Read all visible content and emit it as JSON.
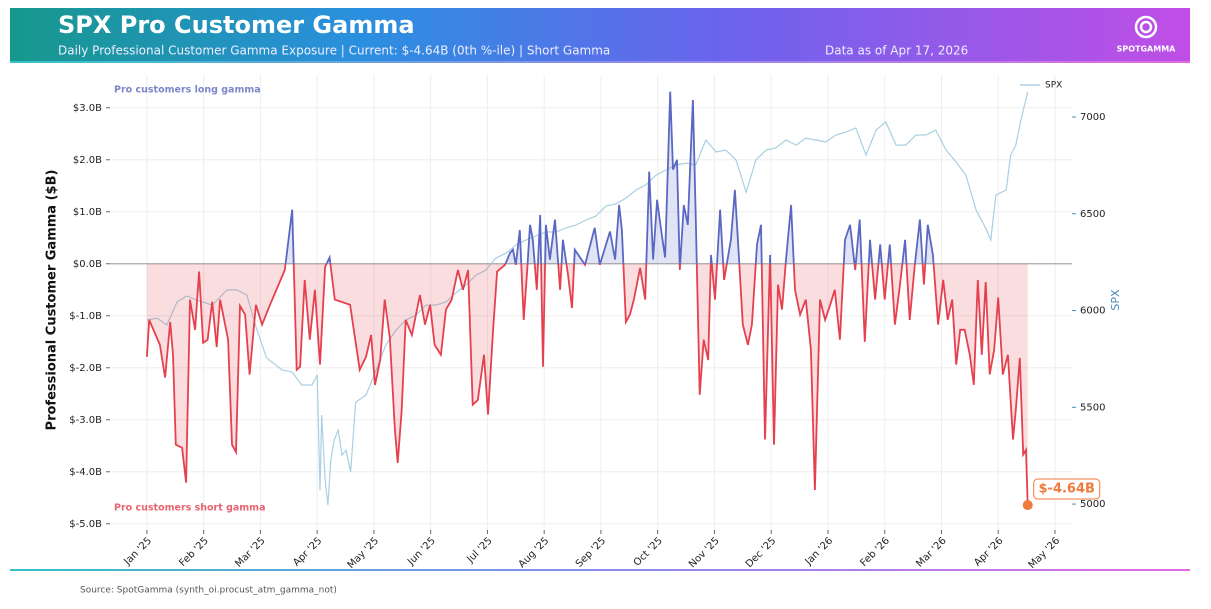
{
  "chart_data": {
    "type": "line",
    "title": "SPX Pro Customer Gamma",
    "subtitle": "Daily Professional Customer Gamma Exposure | Current: $-4.64B (0th %-ile) | Short Gamma",
    "date_note": "Data as of Apr 17, 2026",
    "brand": "SPOTGAMMA",
    "source": "Source: SpotGamma (synth_oi.procust_atm_gamma_not)",
    "ylabel": "Professional Customer Gamma ($B)",
    "y2label": "SPX",
    "grid": true,
    "legend": "upper right",
    "xlim": [
      -0.65,
      16.3
    ],
    "xticks": [
      {
        "value": 0,
        "label": "Jan '25"
      },
      {
        "value": 1,
        "label": "Feb '25"
      },
      {
        "value": 2,
        "label": "Mar '25"
      },
      {
        "value": 3,
        "label": "Apr '25"
      },
      {
        "value": 4,
        "label": "May '25"
      },
      {
        "value": 5,
        "label": "Jun '25"
      },
      {
        "value": 6,
        "label": "Jul '25"
      },
      {
        "value": 7,
        "label": "Aug '25"
      },
      {
        "value": 8,
        "label": "Sep '25"
      },
      {
        "value": 9,
        "label": "Oct '25"
      },
      {
        "value": 10,
        "label": "Nov '25"
      },
      {
        "value": 11,
        "label": "Dec '25"
      },
      {
        "value": 12,
        "label": "Jan '26"
      },
      {
        "value": 13,
        "label": "Feb '26"
      },
      {
        "value": 14,
        "label": "Mar '26"
      },
      {
        "value": 15,
        "label": "Apr '26"
      },
      {
        "value": 16,
        "label": "May '26"
      }
    ],
    "ylim": [
      -5.12,
      3.63
    ],
    "yticks": [
      {
        "value": -5,
        "label": "$-5.0B"
      },
      {
        "value": -4,
        "label": "$-4.0B"
      },
      {
        "value": -3,
        "label": "$-3.0B"
      },
      {
        "value": -2,
        "label": "$-2.0B"
      },
      {
        "value": -1,
        "label": "$-1.0B"
      },
      {
        "value": 0,
        "label": "$0.0B"
      },
      {
        "value": 1,
        "label": "$1.0B"
      },
      {
        "value": 2,
        "label": "$2.0B"
      },
      {
        "value": 3,
        "label": "$3.0B"
      }
    ],
    "y2lim": [
      4866,
      7217
    ],
    "y2ticks": [
      5000,
      5500,
      6000,
      6500,
      7000
    ],
    "annotations": [
      {
        "text": "Pro customers long gamma",
        "color": "#7b87c9"
      },
      {
        "text": "Pro customers short gamma",
        "color": "#e8636f"
      }
    ],
    "end_label": "$-4.64B",
    "end_color": "#ef7a3a",
    "series": [
      {
        "color": "#e5404e",
        "positive_color": "#5b68c2",
        "fill": true,
        "x": [
          0.0,
          0.04,
          0.23,
          0.32,
          0.41,
          0.46,
          0.51,
          0.62,
          0.69,
          0.76,
          0.85,
          0.92,
          0.99,
          1.07,
          1.15,
          1.23,
          1.29,
          1.43,
          1.5,
          1.57,
          1.64,
          1.73,
          1.81,
          1.92,
          2.03,
          2.17,
          2.43,
          2.56,
          2.64,
          2.7,
          2.78,
          2.87,
          2.96,
          3.05,
          3.14,
          3.22,
          3.31,
          3.58,
          3.75,
          3.86,
          3.95,
          4.02,
          4.11,
          4.19,
          4.28,
          4.37,
          4.42,
          4.49,
          4.56,
          4.67,
          4.81,
          4.9,
          4.99,
          5.07,
          5.18,
          5.27,
          5.37,
          5.48,
          5.57,
          5.66,
          5.74,
          5.83,
          5.94,
          6.01,
          6.1,
          6.17,
          6.31,
          6.4,
          6.45,
          6.5,
          6.57,
          6.64,
          6.7,
          6.75,
          6.8,
          6.87,
          6.93,
          6.98,
          7.03,
          7.1,
          7.19,
          7.28,
          7.33,
          7.42,
          7.49,
          7.54,
          7.72,
          7.89,
          7.98,
          8.16,
          8.25,
          8.32,
          8.37,
          8.44,
          8.51,
          8.58,
          8.69,
          8.78,
          8.85,
          8.92,
          8.99,
          9.06,
          9.13,
          9.22,
          9.27,
          9.34,
          9.39,
          9.46,
          9.53,
          9.62,
          9.67,
          9.74,
          9.81,
          9.89,
          9.94,
          10.01,
          10.1,
          10.17,
          10.29,
          10.36,
          10.43,
          10.5,
          10.59,
          10.66,
          10.75,
          10.82,
          10.89,
          10.98,
          11.05,
          11.12,
          11.19,
          11.26,
          11.35,
          11.42,
          11.51,
          11.61,
          11.7,
          11.77,
          11.86,
          11.95,
          12.04,
          12.12,
          12.21,
          12.3,
          12.39,
          12.48,
          12.56,
          12.65,
          12.74,
          12.83,
          12.92,
          13.0,
          13.09,
          13.18,
          13.27,
          13.36,
          13.44,
          13.53,
          13.62,
          13.69,
          13.76,
          13.85,
          13.94,
          14.03,
          14.11,
          14.19,
          14.26,
          14.33,
          14.41,
          14.5,
          14.57,
          14.64,
          14.71,
          14.78,
          14.85,
          14.93,
          15.0,
          15.08,
          15.17,
          15.26,
          15.31,
          15.38,
          15.44,
          15.49,
          15.52
        ],
        "values": [
          -1.79,
          -1.08,
          -1.56,
          -2.19,
          -1.12,
          -1.75,
          -3.48,
          -3.54,
          -4.21,
          -0.69,
          -1.27,
          -0.15,
          -1.52,
          -1.46,
          -0.73,
          -1.6,
          -0.69,
          -1.46,
          -3.48,
          -3.62,
          -0.81,
          -0.98,
          -2.13,
          -0.79,
          -1.17,
          -0.79,
          -0.12,
          1.04,
          -2.04,
          -1.98,
          -0.31,
          -1.46,
          -0.5,
          -1.94,
          -0.06,
          0.12,
          -0.69,
          -0.79,
          -2.04,
          -1.79,
          -1.37,
          -2.33,
          -1.85,
          -0.69,
          -1.42,
          -3.19,
          -3.83,
          -2.81,
          -1.08,
          -1.37,
          -0.6,
          -1.17,
          -0.79,
          -1.56,
          -1.75,
          -0.88,
          -0.69,
          -0.12,
          -0.5,
          -0.12,
          -2.71,
          -2.62,
          -1.75,
          -2.9,
          -1.27,
          -0.15,
          -0.02,
          0.21,
          0.27,
          -0.02,
          0.65,
          -1.08,
          -0.12,
          0.75,
          0.46,
          -0.5,
          0.94,
          -1.98,
          0.75,
          0.08,
          0.85,
          -0.5,
          0.46,
          -0.21,
          -0.85,
          0.27,
          -0.02,
          0.69,
          -0.02,
          0.62,
          0.08,
          1.13,
          0.65,
          -1.12,
          -0.98,
          -0.69,
          -0.08,
          -0.69,
          1.77,
          0.08,
          1.23,
          0.65,
          0.12,
          3.31,
          1.81,
          2.0,
          -0.12,
          1.13,
          0.75,
          3.15,
          0.94,
          -2.52,
          -1.46,
          -1.85,
          0.17,
          -0.69,
          1.04,
          -0.31,
          0.46,
          1.42,
          0.17,
          -1.17,
          -1.56,
          -1.17,
          0.37,
          0.75,
          -3.38,
          0.17,
          -3.48,
          -0.4,
          -0.88,
          0.08,
          1.13,
          -0.5,
          -0.98,
          -0.69,
          -1.65,
          -4.35,
          -0.69,
          -1.08,
          -0.79,
          -0.5,
          -1.46,
          0.46,
          0.75,
          -0.12,
          0.85,
          -1.5,
          0.46,
          -0.69,
          0.37,
          -0.69,
          0.37,
          -1.17,
          -0.4,
          0.46,
          -1.08,
          -0.02,
          0.85,
          -0.4,
          0.75,
          0.17,
          -1.17,
          -0.31,
          -1.08,
          -0.69,
          -1.94,
          -1.27,
          -1.27,
          -1.75,
          -2.33,
          -0.31,
          -1.75,
          -0.35,
          -2.13,
          -1.65,
          -0.65,
          -2.13,
          -1.75,
          -3.38,
          -2.81,
          -1.81,
          -3.67,
          -3.58,
          -4.64
        ]
      },
      {
        "name": "SPX",
        "axis": "y2",
        "color": "#a9cfe2",
        "x": [
          0.0,
          0.18,
          0.35,
          0.53,
          0.7,
          0.88,
          1.15,
          1.41,
          1.59,
          1.76,
          1.94,
          2.11,
          2.38,
          2.56,
          2.73,
          2.91,
          3.0,
          3.05,
          3.08,
          3.14,
          3.19,
          3.24,
          3.3,
          3.37,
          3.44,
          3.51,
          3.59,
          3.68,
          3.86,
          4.04,
          4.21,
          4.39,
          4.56,
          4.74,
          4.92,
          5.09,
          5.27,
          5.44,
          5.62,
          5.8,
          5.97,
          6.15,
          6.33,
          6.5,
          6.68,
          6.85,
          7.03,
          7.21,
          7.38,
          7.56,
          7.74,
          7.91,
          8.09,
          8.26,
          8.44,
          8.62,
          8.79,
          8.97,
          9.15,
          9.32,
          9.5,
          9.67,
          9.85,
          10.03,
          10.2,
          10.38,
          10.56,
          10.73,
          10.91,
          11.08,
          11.26,
          11.44,
          11.61,
          11.79,
          11.96,
          12.14,
          12.32,
          12.49,
          12.67,
          12.85,
          13.02,
          13.2,
          13.37,
          13.55,
          13.73,
          13.9,
          14.08,
          14.26,
          14.43,
          14.61,
          14.78,
          14.87,
          14.96,
          15.14,
          15.22,
          15.31,
          15.4,
          15.52
        ],
        "values": [
          5951,
          5961,
          5925,
          6044,
          6075,
          6054,
          6028,
          6106,
          6106,
          6080,
          5899,
          5755,
          5693,
          5682,
          5615,
          5615,
          5667,
          5072,
          5460,
          5124,
          4995,
          5227,
          5331,
          5382,
          5253,
          5279,
          5165,
          5527,
          5563,
          5693,
          5822,
          5899,
          5951,
          5977,
          6028,
          6028,
          6044,
          6090,
          6132,
          6183,
          6209,
          6271,
          6297,
          6338,
          6364,
          6385,
          6406,
          6406,
          6426,
          6442,
          6468,
          6488,
          6540,
          6550,
          6581,
          6623,
          6649,
          6700,
          6726,
          6752,
          6762,
          6752,
          6881,
          6819,
          6829,
          6778,
          6612,
          6778,
          6829,
          6840,
          6881,
          6855,
          6891,
          6881,
          6871,
          6907,
          6922,
          6943,
          6804,
          6933,
          6974,
          6855,
          6855,
          6907,
          6907,
          6933,
          6829,
          6767,
          6700,
          6519,
          6426,
          6364,
          6597,
          6623,
          6804,
          6855,
          6984,
          7129
        ]
      }
    ]
  }
}
